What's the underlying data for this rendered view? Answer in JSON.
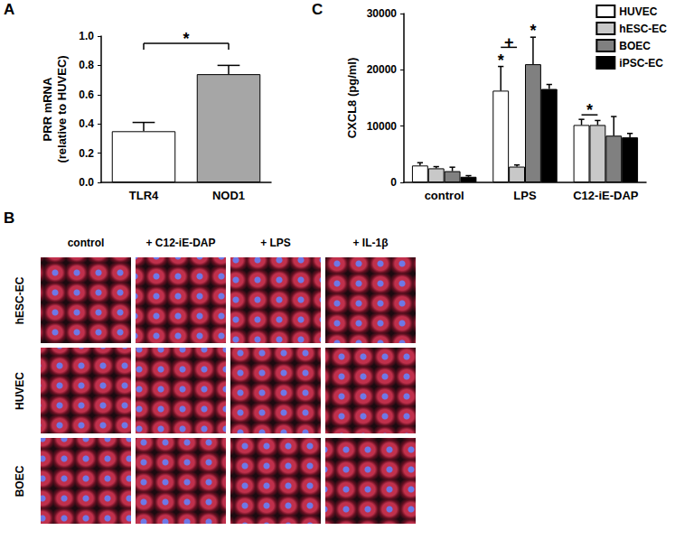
{
  "chart_data": [
    {
      "type": "bar",
      "panel": "A",
      "categories": [
        "TLR4",
        "NOD1"
      ],
      "values": [
        0.35,
        0.74
      ],
      "errors": [
        0.06,
        0.06
      ],
      "colors": [
        "#ffffff",
        "#a6a6a6"
      ],
      "ylabel": "PRR mRNA\n(relative to HUVEC)",
      "ylim": [
        0,
        1.0
      ],
      "yticks": [
        {
          "value": 0,
          "label": "0.0"
        },
        {
          "value": 0.2,
          "label": "0.2"
        },
        {
          "value": 0.4,
          "label": "0.4"
        },
        {
          "value": 0.6,
          "label": "0.6"
        },
        {
          "value": 0.8,
          "label": "0.8"
        },
        {
          "value": 1.0,
          "label": "1.0"
        }
      ],
      "grid": false,
      "annotations": [
        {
          "text": "*",
          "from": {
            "category": "TLR4"
          },
          "to": {
            "category": "NOD1"
          },
          "y": 0.95
        }
      ]
    },
    {
      "type": "bar",
      "panel": "C",
      "categories": [
        "control",
        "LPS",
        "C12-iE-DAP"
      ],
      "series": [
        {
          "name": "HUVEC",
          "color": "#ffffff",
          "values": [
            3000,
            16300,
            10200
          ],
          "errors": [
            500,
            4300,
            1000
          ]
        },
        {
          "name": "hESC-EC",
          "color": "#c8c8c8",
          "values": [
            2500,
            2800,
            10200
          ],
          "errors": [
            300,
            300,
            800
          ]
        },
        {
          "name": "BOEC",
          "color": "#808080",
          "values": [
            2000,
            21000,
            8300
          ],
          "errors": [
            700,
            4800,
            3400
          ]
        },
        {
          "name": "iPSC-EC",
          "color": "#000000",
          "values": [
            1000,
            16600,
            8000
          ],
          "errors": [
            200,
            800,
            700
          ]
        }
      ],
      "ylabel": "CXCL8 (pg/ml)",
      "ylim": [
        0,
        30000
      ],
      "yticks": [
        0,
        10000,
        20000,
        30000
      ],
      "grid": false,
      "legend": "top-right",
      "annotations": [
        {
          "text": "*",
          "category": "LPS",
          "series": "HUVEC",
          "y": 20900
        },
        {
          "text": "*",
          "category": "LPS",
          "series": "BOEC",
          "y": 26100
        },
        {
          "text": "+",
          "from": {
            "category": "LPS",
            "series": "HUVEC"
          },
          "to": {
            "category": "LPS",
            "series": "hESC-EC"
          },
          "y": 24000
        },
        {
          "text": "*",
          "from": {
            "category": "C12-iE-DAP",
            "series": "HUVEC"
          },
          "to": {
            "category": "C12-iE-DAP",
            "series": "hESC-EC"
          },
          "y": 12000
        }
      ]
    }
  ],
  "image_panel": {
    "panel": "B",
    "columns": [
      "control",
      "+ C12-iE-DAP",
      "+ LPS",
      "+ IL-1β"
    ],
    "rows": [
      "hESC-EC",
      "HUVEC",
      "BOEC"
    ]
  }
}
